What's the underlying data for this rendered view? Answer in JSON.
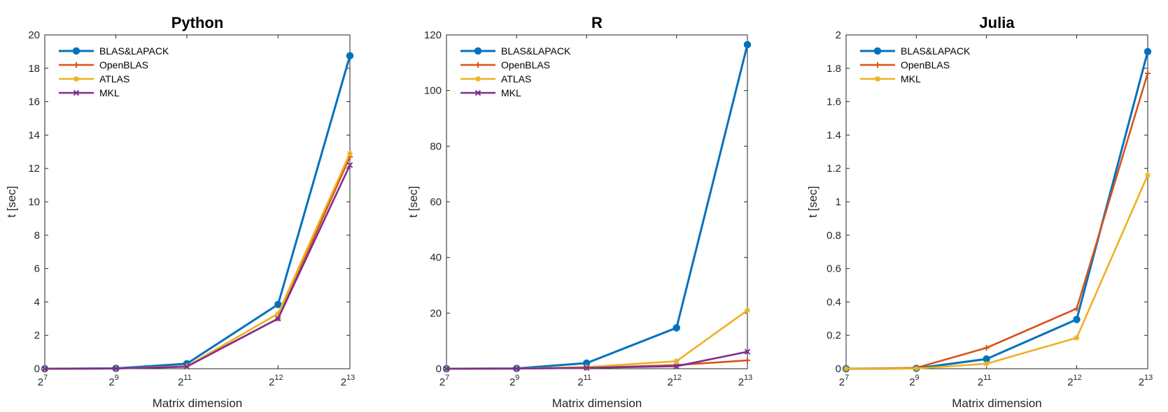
{
  "chart_data": [
    {
      "type": "line",
      "title": "Python",
      "xlabel": "Matrix dimension",
      "ylabel": "t [sec]",
      "x_ticks": [
        {
          "base": "2",
          "exp": "7"
        },
        {
          "base": "2",
          "exp": "9"
        },
        {
          "base": "2",
          "exp": "11"
        },
        {
          "base": "2",
          "exp": "12"
        },
        {
          "base": "2",
          "exp": "13"
        }
      ],
      "ylim": [
        0,
        20
      ],
      "y_ticks": [
        "0",
        "2",
        "4",
        "6",
        "8",
        "10",
        "12",
        "14",
        "16",
        "18",
        "20"
      ],
      "legend_position": "top-left",
      "series": [
        {
          "name": "BLAS&LAPACK",
          "color": "#0072BD",
          "marker": "circle",
          "values": [
            0.0,
            0.02,
            0.3,
            3.85,
            18.75
          ]
        },
        {
          "name": "OpenBLAS",
          "color": "#D95319",
          "marker": "plus",
          "values": [
            0.0,
            0.01,
            0.15,
            3.0,
            12.7
          ]
        },
        {
          "name": "ATLAS",
          "color": "#EDB120",
          "marker": "star",
          "values": [
            0.0,
            0.01,
            0.15,
            3.3,
            12.9
          ]
        },
        {
          "name": "MKL",
          "color": "#7E2F8E",
          "marker": "x",
          "values": [
            0.0,
            0.01,
            0.12,
            3.0,
            12.2
          ]
        }
      ]
    },
    {
      "type": "line",
      "title": "R",
      "xlabel": "Matrix dimension",
      "ylabel": "t [sec]",
      "x_ticks": [
        {
          "base": "2",
          "exp": "7"
        },
        {
          "base": "2",
          "exp": "9"
        },
        {
          "base": "2",
          "exp": "11"
        },
        {
          "base": "2",
          "exp": "12"
        },
        {
          "base": "2",
          "exp": "13"
        }
      ],
      "ylim": [
        0,
        120
      ],
      "y_ticks": [
        "0",
        "20",
        "40",
        "60",
        "80",
        "100",
        "120"
      ],
      "legend_position": "top-left",
      "series": [
        {
          "name": "BLAS&LAPACK",
          "color": "#0072BD",
          "marker": "circle",
          "values": [
            0.0,
            0.1,
            2.0,
            14.7,
            116.5
          ]
        },
        {
          "name": "OpenBLAS",
          "color": "#D95319",
          "marker": "plus",
          "values": [
            0.0,
            0.05,
            0.3,
            1.3,
            3.0
          ]
        },
        {
          "name": "ATLAS",
          "color": "#EDB120",
          "marker": "star",
          "values": [
            0.0,
            0.05,
            0.6,
            2.7,
            21.0
          ]
        },
        {
          "name": "MKL",
          "color": "#7E2F8E",
          "marker": "x",
          "values": [
            0.0,
            0.05,
            0.3,
            0.9,
            6.1
          ]
        }
      ]
    },
    {
      "type": "line",
      "title": "Julia",
      "xlabel": "Matrix dimension",
      "ylabel": "t [sec]",
      "x_ticks": [
        {
          "base": "2",
          "exp": "7"
        },
        {
          "base": "2",
          "exp": "9"
        },
        {
          "base": "2",
          "exp": "11"
        },
        {
          "base": "2",
          "exp": "12"
        },
        {
          "base": "2",
          "exp": "13"
        }
      ],
      "ylim": [
        0,
        2
      ],
      "y_ticks": [
        "0",
        "0.2",
        "0.4",
        "0.6",
        "0.8",
        "1",
        "1.2",
        "1.4",
        "1.6",
        "1.8",
        "2"
      ],
      "legend_position": "top-left",
      "series": [
        {
          "name": "BLAS&LAPACK",
          "color": "#0072BD",
          "marker": "circle",
          "values": [
            0.0,
            0.002,
            0.058,
            0.295,
            1.9
          ]
        },
        {
          "name": "OpenBLAS",
          "color": "#D95319",
          "marker": "plus",
          "values": [
            0.0,
            0.005,
            0.125,
            0.36,
            1.77
          ]
        },
        {
          "name": "MKL",
          "color": "#EDB120",
          "marker": "star",
          "values": [
            0.0,
            0.001,
            0.03,
            0.185,
            1.16
          ]
        }
      ]
    }
  ]
}
